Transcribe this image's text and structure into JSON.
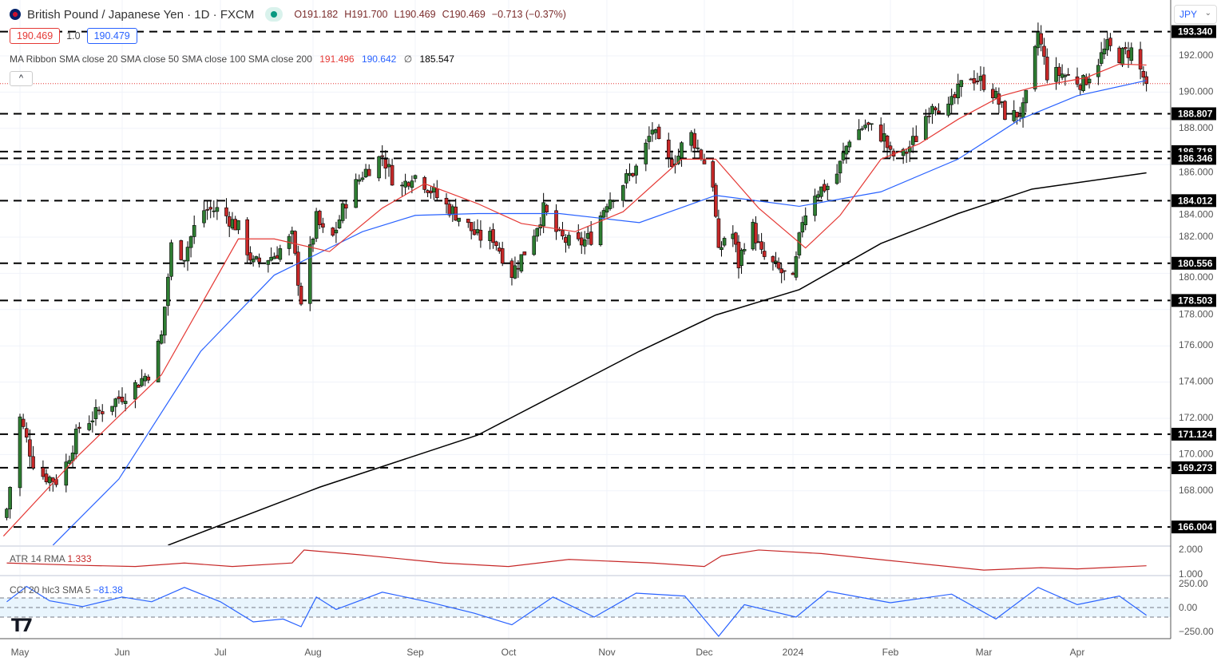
{
  "header": {
    "symbol": "British Pound / Japanese Yen · 1D · FXCM",
    "open": "O191.182",
    "high": "H191.700",
    "low": "L190.469",
    "close": "C190.469",
    "change": "−0.713 (−0.37%)"
  },
  "price_boxes": {
    "bid": "190.469",
    "spread": "1.0",
    "ask": "190.479"
  },
  "ma_legend": {
    "label": "MA Ribbon SMA close 20 SMA close 50 SMA close 100 SMA close 200",
    "v1": "191.496",
    "v2": "190.642",
    "v3": "∅",
    "v4": "185.547"
  },
  "currency_button": "JPY",
  "indicators": {
    "atr_label": "ATR 14 RMA",
    "atr_value": "1.333",
    "cci_label": "CCI 20 hlc3 SMA 5",
    "cci_value": "−81.38"
  },
  "colors": {
    "up": "#2e7d32",
    "down": "#c62828",
    "sma20": "#e53935",
    "sma50": "#2962ff",
    "sma200": "#000000",
    "atr": "#c62828",
    "cci": "#2962ff"
  },
  "chart_data": {
    "type": "candlestick",
    "ylim": [
      165,
      193.8
    ],
    "y_ticks": [
      168,
      170,
      172,
      174,
      176,
      178,
      180,
      182,
      184,
      186,
      188,
      190,
      192
    ],
    "x_ticks": [
      {
        "label": "May",
        "date": "2023-05-01"
      },
      {
        "label": "Jun",
        "date": "2023-06-01"
      },
      {
        "label": "Jul",
        "date": "2023-07-01"
      },
      {
        "label": "Aug",
        "date": "2023-08-01"
      },
      {
        "label": "Sep",
        "date": "2023-09-01"
      },
      {
        "label": "Oct",
        "date": "2023-10-01"
      },
      {
        "label": "Nov",
        "date": "2023-11-01"
      },
      {
        "label": "Dec",
        "date": "2023-12-01"
      },
      {
        "label": "2024",
        "date": "2024-01-01"
      },
      {
        "label": "Feb",
        "date": "2024-02-01"
      },
      {
        "label": "Mar",
        "date": "2024-03-01"
      },
      {
        "label": "Apr",
        "date": "2024-04-01"
      }
    ],
    "horizontal_levels": [
      "193.340",
      "188.807",
      "186.718",
      "186.346",
      "184.012",
      "180.556",
      "178.503",
      "171.124",
      "169.273",
      "166.004"
    ],
    "close_path": [
      [
        "2023-04-27",
        167
      ],
      [
        "2023-05-01",
        172
      ],
      [
        "2023-05-06",
        169
      ],
      [
        "2023-05-13",
        168.5
      ],
      [
        "2023-05-19",
        171.5
      ],
      [
        "2023-05-26",
        172.5
      ],
      [
        "2023-06-03",
        173.5
      ],
      [
        "2023-06-09",
        174.5
      ],
      [
        "2023-06-13",
        176.5
      ],
      [
        "2023-06-16",
        181.5
      ],
      [
        "2023-06-20",
        181
      ],
      [
        "2023-06-25",
        183.5
      ],
      [
        "2023-07-01",
        183.5
      ],
      [
        "2023-07-07",
        182.5
      ],
      [
        "2023-07-12",
        180.5
      ],
      [
        "2023-07-19",
        181
      ],
      [
        "2023-07-25",
        182
      ],
      [
        "2023-07-28",
        178.5
      ],
      [
        "2023-08-02",
        183
      ],
      [
        "2023-08-06",
        181.5
      ],
      [
        "2023-08-11",
        184
      ],
      [
        "2023-08-16",
        185.5
      ],
      [
        "2023-08-22",
        186.5
      ],
      [
        "2023-08-27",
        184.5
      ],
      [
        "2023-08-31",
        185.5
      ],
      [
        "2023-09-04",
        185
      ],
      [
        "2023-09-09",
        184
      ],
      [
        "2023-09-16",
        183
      ],
      [
        "2023-09-21",
        182
      ],
      [
        "2023-09-26",
        182
      ],
      [
        "2023-10-02",
        180
      ],
      [
        "2023-10-07",
        181.5
      ],
      [
        "2023-10-12",
        183.5
      ],
      [
        "2023-10-17",
        182
      ],
      [
        "2023-10-22",
        181.5
      ],
      [
        "2023-10-27",
        182
      ],
      [
        "2023-11-01",
        184
      ],
      [
        "2023-11-06",
        185
      ],
      [
        "2023-11-11",
        186
      ],
      [
        "2023-11-15",
        188
      ],
      [
        "2023-11-19",
        186
      ],
      [
        "2023-11-23",
        186.5
      ],
      [
        "2023-11-26",
        188
      ],
      [
        "2023-11-30",
        186.5
      ],
      [
        "2023-12-04",
        185
      ],
      [
        "2023-12-06",
        181
      ],
      [
        "2023-12-10",
        183
      ],
      [
        "2023-12-13",
        180.5
      ],
      [
        "2023-12-17",
        183
      ],
      [
        "2023-12-21",
        181
      ],
      [
        "2023-12-26",
        180.3
      ],
      [
        "2024-01-01",
        179.5
      ],
      [
        "2024-01-04",
        183
      ],
      [
        "2024-01-08",
        184.5
      ],
      [
        "2024-01-14",
        185
      ],
      [
        "2024-01-19",
        187.5
      ],
      [
        "2024-01-24",
        188.2
      ],
      [
        "2024-01-30",
        187.5
      ],
      [
        "2024-02-01",
        186.5
      ],
      [
        "2024-02-05",
        186.5
      ],
      [
        "2024-02-09",
        187.5
      ],
      [
        "2024-02-14",
        189.5
      ],
      [
        "2024-02-19",
        189
      ],
      [
        "2024-02-25",
        191
      ],
      [
        "2024-03-01",
        190.5
      ],
      [
        "2024-03-04",
        190
      ],
      [
        "2024-03-09",
        188.5
      ],
      [
        "2024-03-14",
        189
      ],
      [
        "2024-03-17",
        191
      ],
      [
        "2024-03-19",
        193.3
      ],
      [
        "2024-03-22",
        191
      ],
      [
        "2024-03-27",
        191
      ],
      [
        "2024-04-03",
        190.5
      ],
      [
        "2024-04-07",
        191.5
      ],
      [
        "2024-04-11",
        192.5
      ],
      [
        "2024-04-15",
        192
      ],
      [
        "2024-04-19",
        192.3
      ],
      [
        "2024-04-22",
        191.2
      ],
      [
        "2024-04-24",
        190.469
      ]
    ],
    "sma20": [
      [
        "2023-04-26",
        165.5
      ],
      [
        "2023-05-19",
        170
      ],
      [
        "2023-06-13",
        174.4
      ],
      [
        "2023-07-07",
        181.9
      ],
      [
        "2023-07-19",
        181.9
      ],
      [
        "2023-08-06",
        181.2
      ],
      [
        "2023-08-22",
        183.6
      ],
      [
        "2023-09-04",
        184.95
      ],
      [
        "2023-09-21",
        183.85
      ],
      [
        "2023-10-05",
        182.75
      ],
      [
        "2023-10-22",
        182.3
      ],
      [
        "2023-11-06",
        183.4
      ],
      [
        "2023-11-24",
        186.3
      ],
      [
        "2023-12-05",
        186.3
      ],
      [
        "2023-12-20",
        183.6
      ],
      [
        "2024-01-05",
        181.4
      ],
      [
        "2024-01-16",
        183.2
      ],
      [
        "2024-01-29",
        186.3
      ],
      [
        "2024-02-10",
        187.15
      ],
      [
        "2024-02-22",
        188.5
      ],
      [
        "2024-03-07",
        189.8
      ],
      [
        "2024-03-17",
        190.25
      ],
      [
        "2024-04-04",
        190.8
      ],
      [
        "2024-04-15",
        191.55
      ],
      [
        "2024-04-24",
        191.496
      ]
    ],
    "sma50": [
      [
        "2023-05-11",
        165
      ],
      [
        "2023-05-31",
        168.65
      ],
      [
        "2023-06-25",
        175.7
      ],
      [
        "2023-07-19",
        179.9
      ],
      [
        "2023-08-16",
        182.3
      ],
      [
        "2023-09-01",
        183.2
      ],
      [
        "2023-09-21",
        183.3
      ],
      [
        "2023-10-17",
        183.3
      ],
      [
        "2023-11-11",
        182.8
      ],
      [
        "2023-12-05",
        184.3
      ],
      [
        "2024-01-03",
        183.7
      ],
      [
        "2024-01-29",
        184.5
      ],
      [
        "2024-02-22",
        186.3
      ],
      [
        "2024-03-13",
        188.5
      ],
      [
        "2024-04-01",
        189.8
      ],
      [
        "2024-04-24",
        190.642
      ]
    ],
    "sma200": [
      [
        "2023-06-15",
        165
      ],
      [
        "2023-08-03",
        168.2
      ],
      [
        "2023-09-21",
        171.07
      ],
      [
        "2023-11-11",
        175.7
      ],
      [
        "2023-12-05",
        177.7
      ],
      [
        "2024-01-03",
        179.1
      ],
      [
        "2024-01-29",
        181.65
      ],
      [
        "2024-02-22",
        183.3
      ],
      [
        "2024-03-17",
        184.65
      ],
      [
        "2024-04-24",
        185.547
      ]
    ],
    "atr": {
      "ticks": [
        "2.000",
        "1.000"
      ],
      "ylim": [
        0.95,
        2.1
      ],
      "points": [
        [
          "2023-04-27",
          1.45
        ],
        [
          "2023-05-20",
          1.35
        ],
        [
          "2023-06-05",
          1.3
        ],
        [
          "2023-06-20",
          1.45
        ],
        [
          "2023-07-05",
          1.3
        ],
        [
          "2023-07-25",
          1.45
        ],
        [
          "2023-07-29",
          2.0
        ],
        [
          "2023-08-15",
          1.8
        ],
        [
          "2023-09-10",
          1.45
        ],
        [
          "2023-10-01",
          1.3
        ],
        [
          "2023-10-20",
          1.6
        ],
        [
          "2023-11-15",
          1.45
        ],
        [
          "2023-12-01",
          1.3
        ],
        [
          "2023-12-07",
          1.75
        ],
        [
          "2023-12-20",
          2.0
        ],
        [
          "2024-01-10",
          1.85
        ],
        [
          "2024-02-01",
          1.55
        ],
        [
          "2024-03-01",
          1.15
        ],
        [
          "2024-03-20",
          1.25
        ],
        [
          "2024-04-01",
          1.2
        ],
        [
          "2024-04-24",
          1.333
        ]
      ]
    },
    "cci": {
      "ticks": [
        "250.00",
        "0.00",
        "−250.00"
      ],
      "ylim": [
        -300,
        300
      ],
      "band": [
        100,
        -100
      ],
      "points": [
        [
          "2023-04-27",
          60
        ],
        [
          "2023-05-03",
          220
        ],
        [
          "2023-05-10",
          70
        ],
        [
          "2023-05-20",
          10
        ],
        [
          "2023-06-01",
          110
        ],
        [
          "2023-06-10",
          60
        ],
        [
          "2023-06-20",
          210
        ],
        [
          "2023-07-01",
          60
        ],
        [
          "2023-07-12",
          -150
        ],
        [
          "2023-07-22",
          -120
        ],
        [
          "2023-07-28",
          -200
        ],
        [
          "2023-08-02",
          110
        ],
        [
          "2023-08-08",
          -20
        ],
        [
          "2023-08-22",
          160
        ],
        [
          "2023-09-05",
          60
        ],
        [
          "2023-09-20",
          -60
        ],
        [
          "2023-10-02",
          -180
        ],
        [
          "2023-10-15",
          110
        ],
        [
          "2023-10-28",
          -100
        ],
        [
          "2023-11-10",
          150
        ],
        [
          "2023-11-25",
          120
        ],
        [
          "2023-12-06",
          -300
        ],
        [
          "2023-12-15",
          30
        ],
        [
          "2024-01-02",
          -100
        ],
        [
          "2024-01-12",
          170
        ],
        [
          "2024-02-01",
          50
        ],
        [
          "2024-02-20",
          140
        ],
        [
          "2024-03-05",
          -120
        ],
        [
          "2024-03-19",
          210
        ],
        [
          "2024-04-01",
          30
        ],
        [
          "2024-04-15",
          120
        ],
        [
          "2024-04-24",
          -81.38
        ]
      ]
    }
  }
}
